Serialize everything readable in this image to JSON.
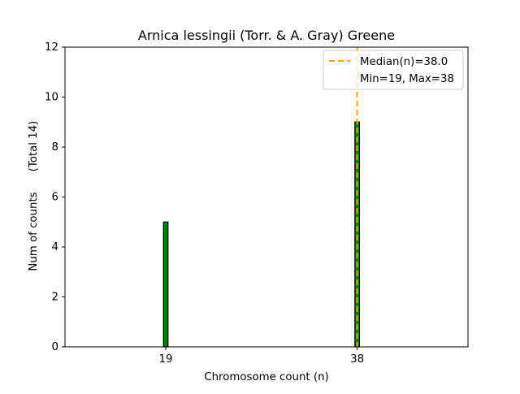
{
  "chart_data": {
    "type": "bar",
    "title": "Arnica lessingii (Torr. & A. Gray) Greene",
    "xlabel": "Chromosome count (n)",
    "ylabel": "Num of counts",
    "ylabel_total": "(Total 14)",
    "x_range": [
      9,
      49
    ],
    "ylim": [
      0,
      12
    ],
    "y_ticks": [
      "0",
      "2",
      "4",
      "6",
      "8",
      "10",
      "12"
    ],
    "x_ticks": [
      "19",
      "38"
    ],
    "bars": [
      {
        "x": 19,
        "value": 5
      },
      {
        "x": 38,
        "value": 9
      }
    ],
    "bar_color": "#008000",
    "bar_edge_color": "#000000",
    "median": {
      "value": 38.0,
      "color": "#FFA500"
    },
    "legend": {
      "position": "top-right",
      "entries": [
        {
          "label": "Median(n)=38.0",
          "style": "dashed",
          "color": "#FFA500"
        },
        {
          "label": "Min=19, Max=38",
          "style": "none"
        }
      ]
    },
    "grid": false
  }
}
